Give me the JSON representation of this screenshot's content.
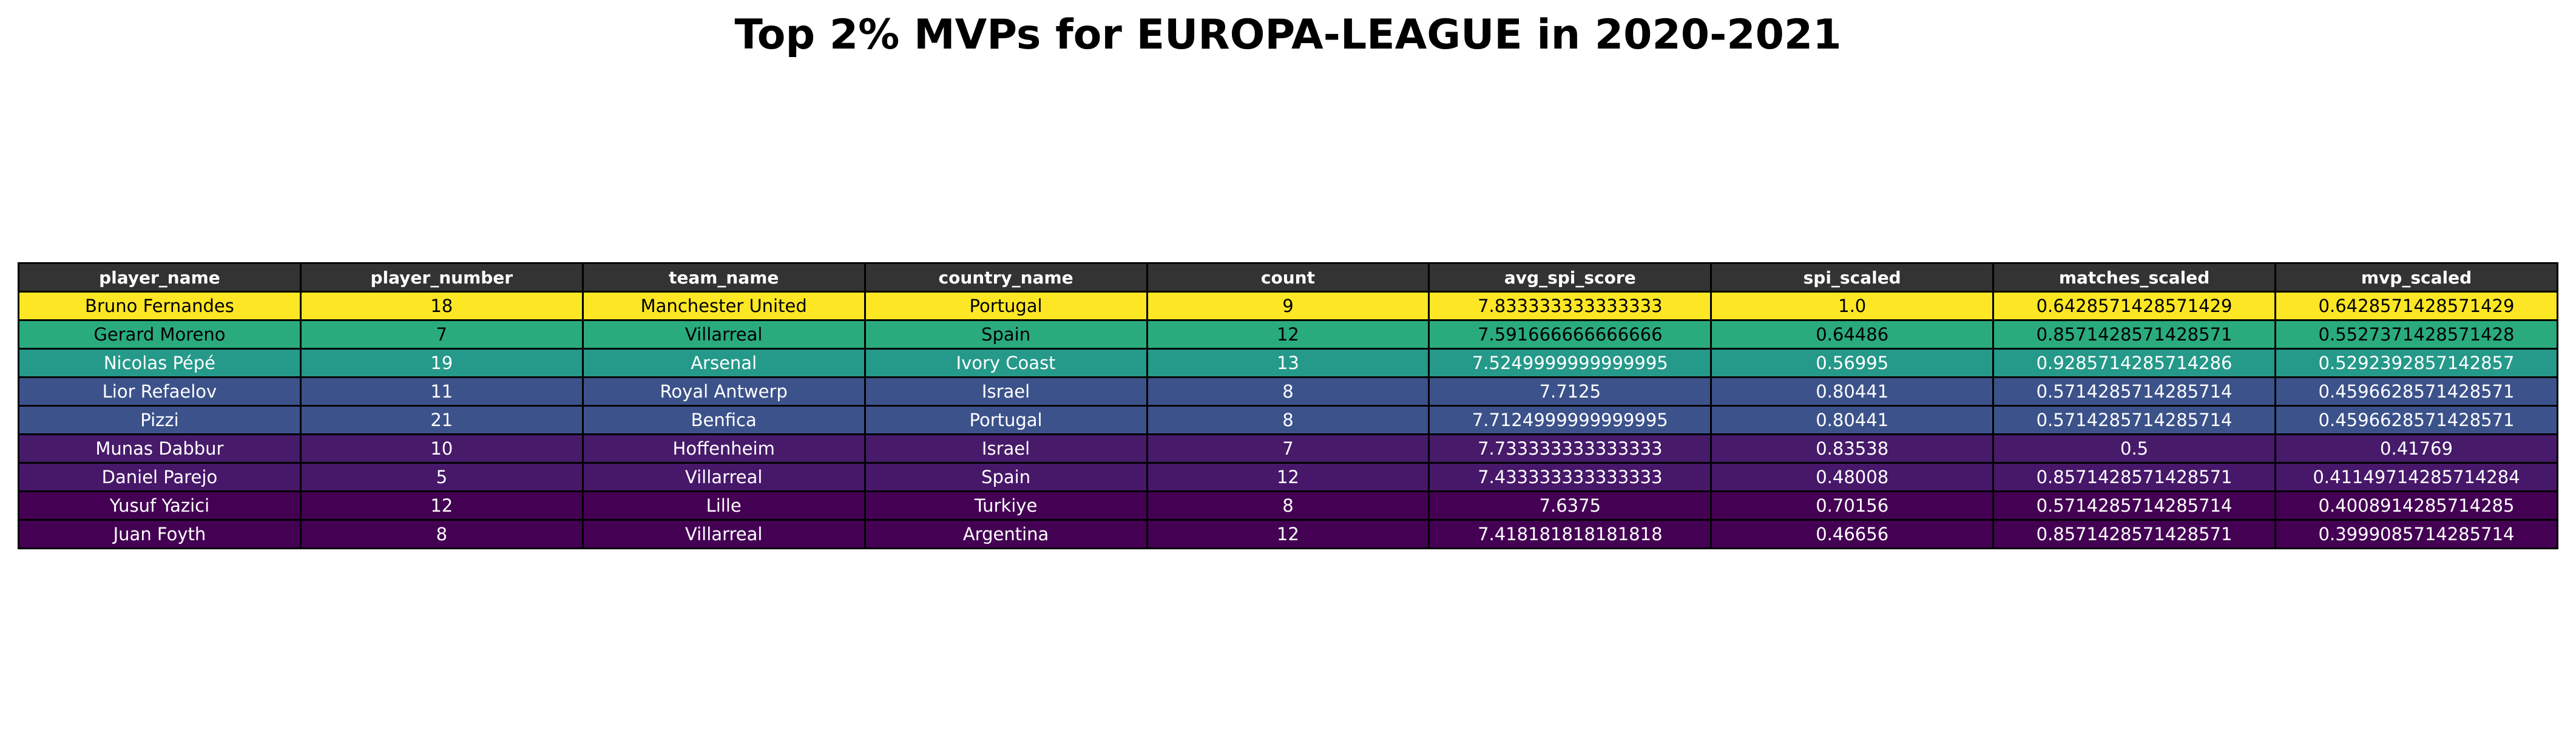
{
  "title": "Top 2% MVPs for EUROPA-LEAGUE in 2020-2021",
  "chart_data": {
    "type": "table",
    "title": "Top 2% MVPs for EUROPA-LEAGUE in 2020-2021",
    "columns": [
      "player_name",
      "player_number",
      "team_name",
      "country_name",
      "count",
      "avg_spi_score",
      "spi_scaled",
      "matches_scaled",
      "mvp_scaled"
    ],
    "rows": [
      {
        "cells": [
          "Bruno Fernandes",
          "18",
          "Manchester United",
          "Portugal",
          "9",
          "7.833333333333333",
          "1.0",
          "0.6428571428571429",
          "0.6428571428571429"
        ],
        "bg": "#fde725",
        "fg": "#000000"
      },
      {
        "cells": [
          "Gerard Moreno",
          "7",
          "Villarreal",
          "Spain",
          "12",
          "7.591666666666666",
          "0.64486",
          "0.8571428571428571",
          "0.5527371428571428"
        ],
        "bg": "#2aab7e",
        "fg": "#000000"
      },
      {
        "cells": [
          "Nicolas Pépé",
          "19",
          "Arsenal",
          "Ivory Coast",
          "13",
          "7.5249999999999995",
          "0.56995",
          "0.9285714285714286",
          "0.5292392857142857"
        ],
        "bg": "#25998a",
        "fg": "#ffffff"
      },
      {
        "cells": [
          "Lior Refaelov",
          "11",
          "Royal Antwerp",
          "Israel",
          "8",
          "7.7125",
          "0.80441",
          "0.5714285714285714",
          "0.4596628571428571"
        ],
        "bg": "#3c528b",
        "fg": "#ffffff"
      },
      {
        "cells": [
          "Pizzi",
          "21",
          "Benfica",
          "Portugal",
          "8",
          "7.7124999999999995",
          "0.80441",
          "0.5714285714285714",
          "0.4596628571428571"
        ],
        "bg": "#3c528b",
        "fg": "#ffffff"
      },
      {
        "cells": [
          "Munas Dabbur",
          "10",
          "Hoffenheim",
          "Israel",
          "7",
          "7.733333333333333",
          "0.83538",
          "0.5",
          "0.41769"
        ],
        "bg": "#471a6a",
        "fg": "#ffffff"
      },
      {
        "cells": [
          "Daniel Parejo",
          "5",
          "Villarreal",
          "Spain",
          "12",
          "7.433333333333333",
          "0.48008",
          "0.8571428571428571",
          "0.41149714285714284"
        ],
        "bg": "#47176a",
        "fg": "#ffffff"
      },
      {
        "cells": [
          "Yusuf Yazici",
          "12",
          "Lille",
          "Turkiye",
          "8",
          "7.6375",
          "0.70156",
          "0.5714285714285714",
          "0.4008914285714285"
        ],
        "bg": "#440154",
        "fg": "#ffffff"
      },
      {
        "cells": [
          "Juan Foyth",
          "8",
          "Villarreal",
          "Argentina",
          "12",
          "7.418181818181818",
          "0.46656",
          "0.8571428571428571",
          "0.3999085714285714"
        ],
        "bg": "#440154",
        "fg": "#ffffff"
      }
    ]
  }
}
